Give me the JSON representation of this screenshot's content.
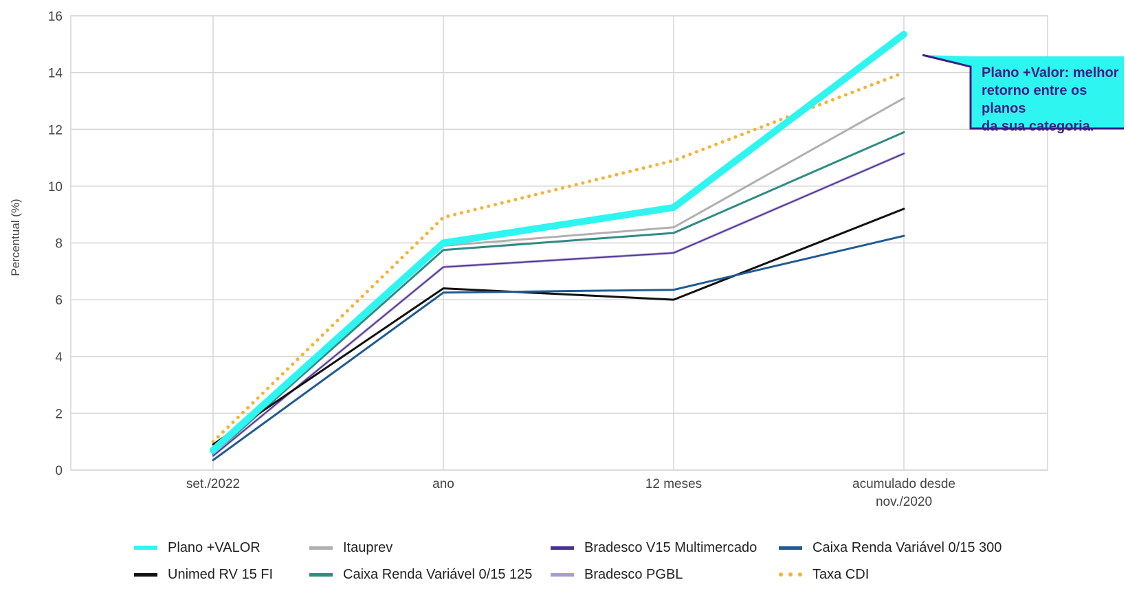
{
  "chart_data": {
    "type": "line",
    "title": "",
    "xlabel": "",
    "ylabel": "Percentual (%)",
    "ylim": [
      0,
      16
    ],
    "yticks": [
      0,
      2,
      4,
      6,
      8,
      10,
      12,
      14,
      16
    ],
    "categories": [
      "set./2022",
      "ano",
      "12 meses",
      "acumulado desde nov./2020"
    ],
    "category_lines": [
      [
        "set./2022"
      ],
      [
        "ano"
      ],
      [
        "12 meses"
      ],
      [
        "acumulado desde",
        "nov./2020"
      ]
    ],
    "grid": true,
    "legend_position": "bottom",
    "series": [
      {
        "name": "Taxa CDI",
        "values": [
          1.0,
          8.9,
          10.9,
          14.0
        ],
        "color": "#f5b335",
        "style": "dotted",
        "width": 5
      },
      {
        "name": "Itauprev",
        "values": [
          0.6,
          7.9,
          8.55,
          13.1
        ],
        "color": "#b0b0b0",
        "style": "solid",
        "width": 3
      },
      {
        "name": "Caixa Renda Variável 0/15 125",
        "values": [
          0.55,
          7.75,
          8.35,
          11.9
        ],
        "color": "#2f8c84",
        "style": "solid",
        "width": 3
      },
      {
        "name": "Bradesco PGBL",
        "values": [
          0.5,
          7.15,
          7.65,
          11.15
        ],
        "color": "#a99ad6",
        "style": "solid",
        "width": 3.5
      },
      {
        "name": "Bradesco V15 Multimercado",
        "values": [
          0.5,
          7.15,
          7.65,
          11.15
        ],
        "color": "#4b2f8c",
        "style": "solid",
        "width": 1.5
      },
      {
        "name": "Unimed RV 15 FI",
        "values": [
          0.9,
          6.4,
          6.0,
          9.2
        ],
        "color": "#111111",
        "style": "solid",
        "width": 3
      },
      {
        "name": "Caixa Renda Variável 0/15 300",
        "values": [
          0.35,
          6.25,
          6.35,
          8.25
        ],
        "color": "#1f5b92",
        "style": "solid",
        "width": 3
      },
      {
        "name": "Plano +VALOR",
        "values": [
          0.7,
          8.0,
          9.25,
          15.35
        ],
        "color": "#2ff5f0",
        "style": "solid",
        "width": 10
      }
    ],
    "annotation": {
      "lines": [
        "Plano +Valor: melhor",
        "retorno entre os planos",
        "da sua categoria."
      ],
      "fill": "#2ff5f0",
      "border": "#3a1f86"
    }
  },
  "legend": {
    "items": [
      {
        "label": "Plano +VALOR",
        "color": "#2ff5f0",
        "style": "solid"
      },
      {
        "label": "Itauprev",
        "color": "#b0b0b0",
        "style": "solid"
      },
      {
        "label": "Bradesco V15 Multimercado",
        "color": "#4b2f8c",
        "style": "solid"
      },
      {
        "label": "Caixa Renda Variável 0/15 300",
        "color": "#1f5b92",
        "style": "solid"
      },
      {
        "label": "Unimed RV 15 FI",
        "color": "#111111",
        "style": "solid"
      },
      {
        "label": "Caixa Renda Variável 0/15 125",
        "color": "#2f8c84",
        "style": "solid"
      },
      {
        "label": "Bradesco PGBL",
        "color": "#a99ad6",
        "style": "solid"
      },
      {
        "label": "Taxa CDI",
        "color": "#f5b335",
        "style": "dotted"
      }
    ]
  }
}
